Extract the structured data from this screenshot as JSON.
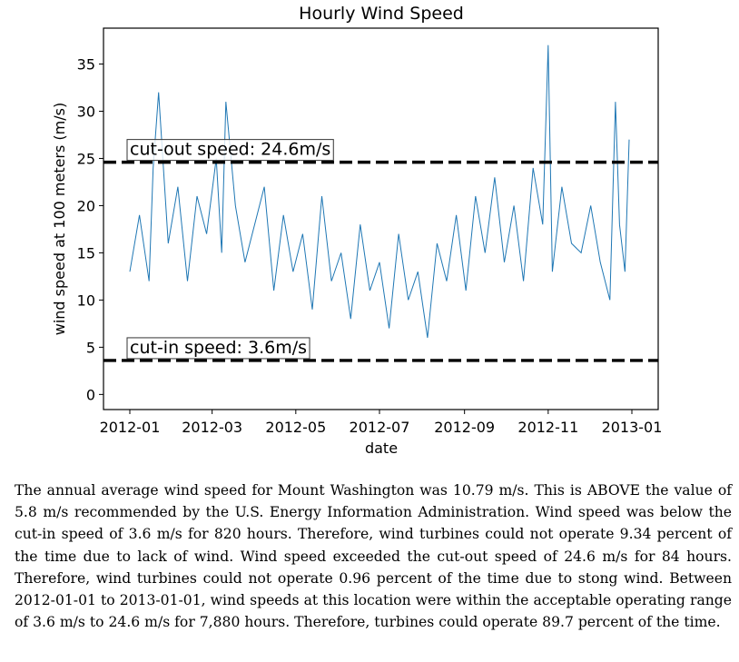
{
  "chart_data": {
    "type": "line",
    "title": "Hourly Wind Speed",
    "xlabel": "date",
    "ylabel": "wind speed at 100 meters (m/s)",
    "x_range": [
      "2012-01-01",
      "2013-01-01"
    ],
    "ylim": [
      -1.6,
      38.8
    ],
    "x_tick_labels": [
      "2012-01",
      "2012-03",
      "2012-05",
      "2012-07",
      "2012-09",
      "2012-11",
      "2013-01"
    ],
    "y_tick_values": [
      0,
      5,
      10,
      15,
      20,
      25,
      30,
      35
    ],
    "y_tick_labels": [
      "0",
      "5",
      "10",
      "15",
      "20",
      "25",
      "30",
      "35"
    ],
    "grid": false,
    "line_color": "#1f77b4",
    "reference_color": "#000000",
    "reference_lines": [
      {
        "label": "cut-out speed: 24.6m/s",
        "value": 24.6
      },
      {
        "label": "cut-in speed: 3.6m/s",
        "value": 3.6
      }
    ],
    "series": [
      {
        "x": [
          "2012-01-01",
          "2012-01-08",
          "2012-01-15",
          "2012-01-18",
          "2012-01-22",
          "2012-01-29",
          "2012-02-05",
          "2012-02-12",
          "2012-02-19",
          "2012-02-26",
          "2012-03-04",
          "2012-03-08",
          "2012-03-11",
          "2012-03-18",
          "2012-03-25",
          "2012-04-01",
          "2012-04-08",
          "2012-04-15",
          "2012-04-22",
          "2012-04-29",
          "2012-05-06",
          "2012-05-13",
          "2012-05-20",
          "2012-05-27",
          "2012-06-03",
          "2012-06-10",
          "2012-06-17",
          "2012-06-24",
          "2012-07-01",
          "2012-07-08",
          "2012-07-15",
          "2012-07-22",
          "2012-07-29",
          "2012-08-05",
          "2012-08-12",
          "2012-08-19",
          "2012-08-26",
          "2012-09-02",
          "2012-09-09",
          "2012-09-16",
          "2012-09-23",
          "2012-09-30",
          "2012-10-07",
          "2012-10-14",
          "2012-10-21",
          "2012-10-28",
          "2012-11-01",
          "2012-11-04",
          "2012-11-11",
          "2012-11-18",
          "2012-11-25",
          "2012-12-02",
          "2012-12-09",
          "2012-12-16",
          "2012-12-20",
          "2012-12-23",
          "2012-12-27",
          "2012-12-30"
        ],
        "y": [
          13,
          19,
          12,
          24,
          32,
          16,
          22,
          12,
          21,
          17,
          25,
          15,
          31,
          20,
          14,
          18,
          22,
          11,
          19,
          13,
          17,
          9,
          21,
          12,
          15,
          8,
          18,
          11,
          14,
          7,
          17,
          10,
          13,
          6,
          16,
          12,
          19,
          11,
          21,
          15,
          23,
          14,
          20,
          12,
          24,
          18,
          37,
          13,
          22,
          16,
          15,
          20,
          14,
          10,
          31,
          18,
          13,
          27
        ]
      }
    ]
  },
  "report": {
    "paragraph": "The annual average wind speed for Mount Washington was 10.79 m/s. This is ABOVE the value of 5.8 m/s recommended by the U.S. Energy Information Administration. Wind speed was below the cut-in speed of 3.6 m/s for 820 hours. Therefore, wind turbines could not operate 9.34 percent of the time due to lack of wind. Wind speed exceeded the cut-out speed of 24.6 m/s for 84 hours. Therefore, wind turbines could not operate 0.96 percent of the time due to stong wind. Between 2012-01-01 to 2013-01-01, wind speeds at this location were within the acceptable operating range of 3.6 m/s to 24.6 m/s for 7,880 hours. Therefore, turbines could operate 89.7 percent of the time."
  }
}
